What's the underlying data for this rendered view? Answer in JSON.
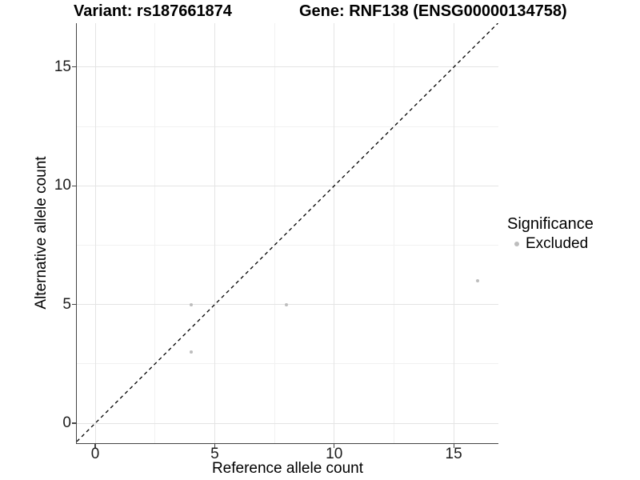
{
  "chart_data": {
    "type": "scatter",
    "title_left": "Variant: rs187661874",
    "title_right": "Gene: RNF138 (ENSG00000134758)",
    "xlabel": "Reference allele count",
    "ylabel": "Alternative allele count",
    "xlim": [
      -0.77,
      16.87
    ],
    "ylim": [
      -0.84,
      16.85
    ],
    "x_major_ticks": [
      0,
      5,
      10,
      15
    ],
    "x_minor_ticks": [
      2.5,
      7.5,
      12.5
    ],
    "y_major_ticks": [
      0,
      5,
      10,
      15
    ],
    "y_minor_ticks": [
      2.5,
      7.5,
      12.5
    ],
    "grid": "major+minor",
    "identity_line": {
      "slope": 1,
      "intercept": 0,
      "style": "dashed",
      "color": "#000000"
    },
    "series": [
      {
        "name": "Excluded",
        "color": "#bdbdbd",
        "marker": "circle",
        "points": [
          {
            "x": 4,
            "y": 5
          },
          {
            "x": 4,
            "y": 3
          },
          {
            "x": 8,
            "y": 5
          },
          {
            "x": 16,
            "y": 6
          }
        ]
      }
    ],
    "legend": {
      "title": "Significance",
      "position": "right",
      "items": [
        {
          "label": "Excluded",
          "color": "#bdbdbd"
        }
      ]
    },
    "colors": {
      "background": "#ffffff",
      "axis": "#454545",
      "grid_major": "#e4e4e4",
      "grid_minor": "#f1f1f1",
      "text": "#000000"
    }
  }
}
